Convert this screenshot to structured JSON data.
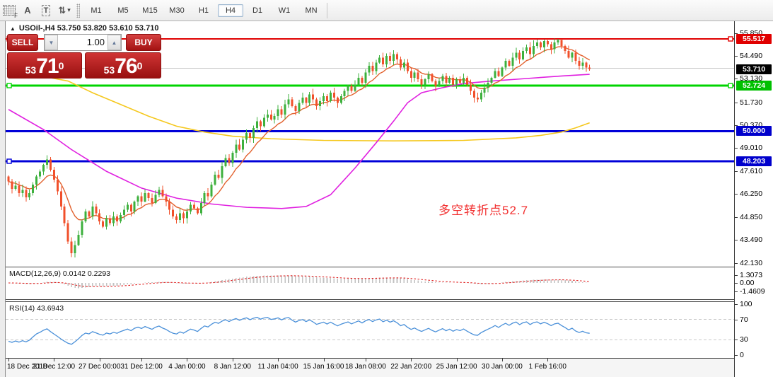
{
  "toolbar": {
    "icons": [
      {
        "name": "chart-grid-f-icon",
        "glyph": "F"
      },
      {
        "name": "label-a-icon",
        "glyph": "A"
      },
      {
        "name": "text-tool-icon",
        "glyph": "T"
      },
      {
        "name": "arrange-arrows-icon",
        "glyph": "⇅"
      },
      {
        "name": "dropdown-caret-icon",
        "glyph": "▾"
      }
    ],
    "timeframes": [
      {
        "label": "M1",
        "selected": false
      },
      {
        "label": "M5",
        "selected": false
      },
      {
        "label": "M15",
        "selected": false
      },
      {
        "label": "M30",
        "selected": false
      },
      {
        "label": "H1",
        "selected": false
      },
      {
        "label": "H4",
        "selected": true
      },
      {
        "label": "D1",
        "selected": false
      },
      {
        "label": "W1",
        "selected": false
      },
      {
        "label": "MN",
        "selected": false
      }
    ]
  },
  "chart_header": {
    "collapse_icon": "▲",
    "title": "USOil-,H4  53.750 53.820 53.610 53.710",
    "symbol": "USOil-",
    "period": "H4",
    "open": "53.750",
    "high": "53.820",
    "low": "53.610",
    "close": "53.710"
  },
  "trade_panel": {
    "sell_label": "SELL",
    "buy_label": "BUY",
    "volume": "1.00",
    "volume_down_icon": "▼",
    "volume_up_icon": "▲",
    "sell_price_small": "53",
    "sell_price_big": "71",
    "sell_price_sup": "0",
    "buy_price_small": "53",
    "buy_price_big": "76",
    "buy_price_sup": "0"
  },
  "annotation": {
    "text": "多空转折点52.7",
    "color": "#f23030"
  },
  "macd_panel": {
    "label": "MACD(12,26,9) 0.0142 0.2293",
    "params": "12,26,9",
    "value_main": "0.0142",
    "value_signal": "0.2293",
    "axis_ticks": [
      {
        "v": 1.3073,
        "label": "1.3073"
      },
      {
        "v": 0.0,
        "label": "0.00"
      },
      {
        "v": -1.4609,
        "label": "-1.4609"
      }
    ]
  },
  "rsi_panel": {
    "label": "RSI(14) 43.6943",
    "period": "14",
    "value": "43.6943",
    "axis_ticks": [
      {
        "v": 100,
        "label": "100"
      },
      {
        "v": 70,
        "label": "70"
      },
      {
        "v": 30,
        "label": "30"
      },
      {
        "v": 0,
        "label": "0"
      }
    ],
    "levels": [
      70,
      30
    ]
  },
  "chart_data": {
    "type": "candlestick",
    "symbol": "USOil-",
    "timeframe": "H4",
    "price_range_visible": [
      42.13,
      55.85
    ],
    "first_open": 47.3,
    "closes": [
      47.0,
      46.55,
      46.75,
      46.3,
      46.5,
      46.05,
      46.3,
      46.8,
      47.3,
      47.6,
      48.0,
      48.3,
      47.7,
      47.1,
      46.4,
      45.5,
      44.5,
      43.4,
      42.7,
      43.2,
      43.8,
      44.6,
      45.2,
      44.9,
      45.5,
      45.1,
      44.6,
      44.3,
      44.8,
      44.5,
      44.9,
      44.6,
      45.0,
      45.3,
      45.6,
      45.2,
      45.8,
      46.1,
      45.8,
      46.3,
      46.0,
      45.7,
      46.2,
      46.5,
      46.1,
      45.8,
      45.3,
      44.9,
      44.7,
      45.1,
      44.8,
      45.2,
      45.6,
      45.4,
      45.1,
      45.7,
      46.3,
      46.1,
      46.8,
      47.4,
      47.2,
      47.9,
      48.4,
      48.1,
      48.7,
      49.2,
      48.9,
      49.5,
      49.9,
      49.6,
      50.2,
      50.6,
      50.3,
      50.8,
      51.0,
      50.7,
      50.9,
      51.3,
      51.0,
      51.6,
      51.9,
      51.5,
      51.2,
      51.7,
      52.0,
      51.7,
      52.2,
      51.9,
      51.5,
      51.8,
      52.1,
      51.8,
      52.3,
      52.0,
      51.7,
      52.1,
      52.4,
      52.7,
      52.4,
      52.8,
      53.2,
      52.9,
      53.5,
      53.9,
      53.6,
      54.1,
      54.4,
      54.0,
      54.5,
      54.2,
      54.6,
      54.3,
      53.8,
      54.1,
      53.6,
      53.2,
      53.5,
      53.1,
      52.8,
      53.1,
      53.4,
      53.0,
      52.7,
      53.0,
      53.3,
      52.9,
      53.2,
      52.8,
      53.1,
      52.9,
      53.2,
      52.8,
      52.4,
      52.0,
      51.9,
      52.3,
      52.6,
      52.9,
      53.2,
      53.6,
      53.3,
      53.8,
      54.2,
      53.9,
      54.4,
      54.7,
      54.3,
      54.8,
      55.0,
      54.6,
      55.1,
      55.3,
      55.0,
      55.4,
      55.2,
      54.9,
      55.3,
      55.45,
      55.1,
      54.8,
      54.4,
      54.7,
      54.2,
      53.9,
      54.1,
      53.8,
      53.71
    ],
    "colors": {
      "up": "#3db03d",
      "down": "#f1502b",
      "ma_fast": "#e2622e",
      "ma_mid": "#e020e0",
      "ma_slow": "#f5c81e",
      "macd_bar": "#c2c2c2",
      "macd_signal": "#e02020",
      "rsi_line": "#4a90d9",
      "bid_line": "#c8c8c8"
    },
    "moving_averages": {
      "fast_ema_period": 10,
      "mid_points": [
        [
          0,
          51.3
        ],
        [
          10,
          50.1
        ],
        [
          18,
          48.9
        ],
        [
          28,
          47.6
        ],
        [
          38,
          46.6
        ],
        [
          48,
          46.0
        ],
        [
          58,
          45.65
        ],
        [
          68,
          45.45
        ],
        [
          78,
          45.38
        ],
        [
          85,
          45.5
        ],
        [
          92,
          46.2
        ],
        [
          99,
          47.8
        ],
        [
          105,
          49.3
        ],
        [
          110,
          50.6
        ],
        [
          114,
          51.7
        ],
        [
          118,
          52.3
        ],
        [
          124,
          52.6
        ],
        [
          130,
          52.85
        ],
        [
          138,
          53.0
        ],
        [
          148,
          53.15
        ],
        [
          158,
          53.3
        ],
        [
          166,
          53.4
        ]
      ],
      "slow_points": [
        [
          0,
          53.8
        ],
        [
          8,
          53.35
        ],
        [
          17,
          53.0
        ],
        [
          24,
          52.3
        ],
        [
          32,
          51.6
        ],
        [
          40,
          50.9
        ],
        [
          48,
          50.3
        ],
        [
          56,
          49.95
        ],
        [
          64,
          49.7
        ],
        [
          75,
          49.55
        ],
        [
          90,
          49.45
        ],
        [
          110,
          49.42
        ],
        [
          130,
          49.45
        ],
        [
          145,
          49.6
        ],
        [
          152,
          49.75
        ],
        [
          158,
          49.95
        ],
        [
          162,
          50.2
        ],
        [
          166,
          50.5
        ]
      ]
    },
    "horizontal_lines": [
      {
        "price": 55.517,
        "color": "#e00000",
        "width": 2,
        "badge": "55.517",
        "badge_bg": "#e00000",
        "handles": "both"
      },
      {
        "price": 52.724,
        "color": "#00d400",
        "width": 3,
        "badge": "52.724",
        "badge_bg": "#00c000",
        "handles": "both"
      },
      {
        "price": 50.0,
        "color": "#0000d8",
        "width": 3,
        "badge": "50.000",
        "badge_bg": "#0000cc",
        "handles": "none"
      },
      {
        "price": 48.203,
        "color": "#0000d8",
        "width": 3,
        "badge": "48.203",
        "badge_bg": "#0000cc",
        "handles": "left"
      }
    ],
    "bid_line_price": 53.77,
    "current_price_badge": {
      "value": "53.710",
      "bg": "#000000"
    },
    "y_axis_ticks": [
      55.85,
      54.49,
      53.13,
      51.73,
      50.37,
      49.01,
      47.61,
      46.25,
      44.85,
      43.49,
      42.13
    ],
    "x_axis": {
      "ticks": [
        {
          "label": "18 Dec 2018",
          "bar": 0
        },
        {
          "label": "21 Dec 12:00",
          "bar": 13
        },
        {
          "label": "27 Dec 00:00",
          "bar": 26
        },
        {
          "label": "31 Dec 12:00",
          "bar": 38
        },
        {
          "label": "4 Jan 00:00",
          "bar": 51
        },
        {
          "label": "8 Jan 12:00",
          "bar": 64
        },
        {
          "label": "11 Jan 04:00",
          "bar": 77
        },
        {
          "label": "15 Jan 16:00",
          "bar": 90
        },
        {
          "label": "18 Jan 08:00",
          "bar": 102
        },
        {
          "label": "22 Jan 20:00",
          "bar": 115
        },
        {
          "label": "25 Jan 12:00",
          "bar": 128
        },
        {
          "label": "30 Jan 00:00",
          "bar": 141
        },
        {
          "label": "1 Feb 16:00",
          "bar": 154
        }
      ]
    }
  }
}
